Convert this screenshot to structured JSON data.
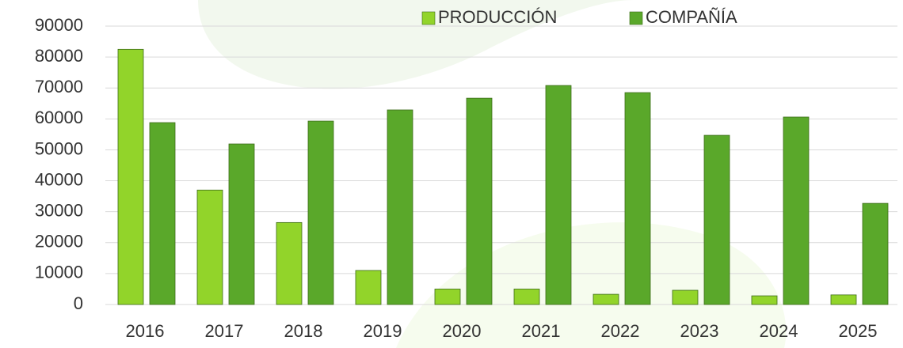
{
  "chart_data": {
    "type": "bar",
    "categories": [
      "2016",
      "2017",
      "2018",
      "2019",
      "2020",
      "2021",
      "2022",
      "2023",
      "2024",
      "2025"
    ],
    "series": [
      {
        "name": "PRODUCCIÓN",
        "color": "#92d42a",
        "values": [
          82500,
          37000,
          26500,
          11000,
          5000,
          5000,
          3300,
          4600,
          2800,
          3100
        ]
      },
      {
        "name": "COMPAÑÍA",
        "color": "#5aa82a",
        "values": [
          58800,
          51900,
          59300,
          62900,
          66700,
          70800,
          68500,
          54700,
          60600,
          32700
        ]
      }
    ],
    "ylim": [
      0,
      90000
    ],
    "yticks": [
      0,
      10000,
      20000,
      30000,
      40000,
      50000,
      60000,
      70000,
      80000,
      90000
    ],
    "grid": true,
    "legend": "top"
  }
}
